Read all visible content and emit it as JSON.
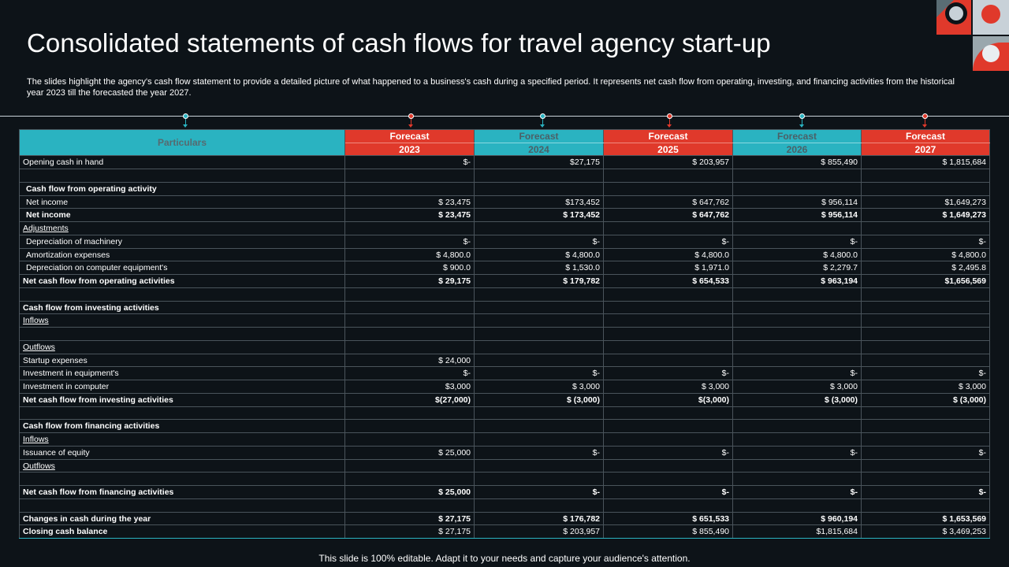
{
  "slide": {
    "title": "Consolidated statements of cash flows for travel agency start-up",
    "description": "The slides highlight the agency's cash flow statement to provide a detailed picture of what happened to a business's cash during a specified period. It represents net cash flow from operating, investing, and financing activities from the historical year 2023 till the forecasted the year 2027.",
    "footer": "This slide is 100% editable. Adapt it to your needs and capture your audience's attention."
  },
  "colors": {
    "teal": "#2ab3c1",
    "red": "#e0392b",
    "background": "#0d1318"
  },
  "table": {
    "particulars_header": "Particulars",
    "columns": [
      {
        "label": "Forecast",
        "year": "2023",
        "color": "red"
      },
      {
        "label": "Forecast",
        "year": "2024",
        "color": "teal"
      },
      {
        "label": "Forecast",
        "year": "2025",
        "color": "red"
      },
      {
        "label": "Forecast",
        "year": "2026",
        "color": "teal"
      },
      {
        "label": "Forecast",
        "year": "2027",
        "color": "red"
      }
    ],
    "rows": [
      {
        "label": "Opening cash in hand",
        "style": "plain",
        "values": [
          "$-",
          "$27,175",
          "$ 203,957",
          "$ 855,490",
          "$ 1,815,684"
        ]
      },
      {
        "label": "",
        "style": "plain",
        "values": [
          "",
          "",
          "",
          "",
          ""
        ]
      },
      {
        "label": "Cash flow from operating activity",
        "style": "bold-ind",
        "values": [
          "",
          "",
          "",
          "",
          ""
        ]
      },
      {
        "label": "Net income",
        "style": "ind",
        "values": [
          "$ 23,475",
          "$173,452",
          "$ 647,762",
          "$ 956,114",
          "$1,649,273"
        ]
      },
      {
        "label": "Net income",
        "style": "bold-ind",
        "values": [
          "$ 23,475",
          "$ 173,452",
          "$ 647,762",
          "$ 956,114",
          "$ 1,649,273"
        ]
      },
      {
        "label": "Adjustments",
        "style": "underline",
        "values": [
          "",
          "",
          "",
          "",
          ""
        ]
      },
      {
        "label": "Depreciation of machinery",
        "style": "ind",
        "values": [
          "$-",
          "$-",
          "$-",
          "$-",
          "$-"
        ]
      },
      {
        "label": "Amortization expenses",
        "style": "ind",
        "values": [
          "$ 4,800.0",
          "$ 4,800.0",
          "$ 4,800.0",
          "$ 4,800.0",
          "$ 4,800.0"
        ]
      },
      {
        "label": "Depreciation on computer equipment's",
        "style": "ind",
        "values": [
          "$ 900.0",
          "$ 1,530.0",
          "$ 1,971.0",
          "$ 2,279.7",
          "$ 2,495.8"
        ]
      },
      {
        "label": "Net cash flow from operating activities",
        "style": "bold",
        "values": [
          "$ 29,175",
          "$ 179,782",
          "$ 654,533",
          "$ 963,194",
          "$1,656,569"
        ]
      },
      {
        "label": "",
        "style": "plain",
        "values": [
          "",
          "",
          "",
          "",
          ""
        ]
      },
      {
        "label": "Cash flow from investing activities",
        "style": "bold",
        "values": [
          "",
          "",
          "",
          "",
          ""
        ]
      },
      {
        "label": "Inflows",
        "style": "underline",
        "values": [
          "",
          "",
          "",
          "",
          ""
        ]
      },
      {
        "label": "",
        "style": "plain",
        "values": [
          "",
          "",
          "",
          "",
          ""
        ]
      },
      {
        "label": "Outflows",
        "style": "underline",
        "values": [
          "",
          "",
          "",
          "",
          ""
        ]
      },
      {
        "label": "Startup expenses",
        "style": "plain",
        "values": [
          "$ 24,000",
          "",
          "",
          "",
          ""
        ]
      },
      {
        "label": "Investment in equipment's",
        "style": "plain",
        "values": [
          "$-",
          "$-",
          "$-",
          "$-",
          "$-"
        ]
      },
      {
        "label": "Investment in computer",
        "style": "plain",
        "values": [
          "$3,000",
          "$ 3,000",
          "$ 3,000",
          "$ 3,000",
          "$ 3,000"
        ]
      },
      {
        "label": "Net cash flow from investing activities",
        "style": "bold",
        "values": [
          "$(27,000)",
          "$ (3,000)",
          "$(3,000)",
          "$ (3,000)",
          "$ (3,000)"
        ]
      },
      {
        "label": "",
        "style": "plain",
        "values": [
          "",
          "",
          "",
          "",
          ""
        ]
      },
      {
        "label": "Cash flow from financing activities",
        "style": "bold",
        "values": [
          "",
          "",
          "",
          "",
          ""
        ]
      },
      {
        "label": "Inflows",
        "style": "underline",
        "values": [
          "",
          "",
          "",
          "",
          ""
        ]
      },
      {
        "label": "Issuance of equity",
        "style": "plain",
        "values": [
          "$ 25,000",
          "$-",
          "$-",
          "$-",
          "$-"
        ]
      },
      {
        "label": "Outflows",
        "style": "underline",
        "values": [
          "",
          "",
          "",
          "",
          ""
        ]
      },
      {
        "label": "",
        "style": "plain",
        "values": [
          "",
          "",
          "",
          "",
          ""
        ]
      },
      {
        "label": "Net cash flow from financing activities",
        "style": "bold",
        "values": [
          "$ 25,000",
          "$-",
          "$-",
          "$-",
          "$-"
        ]
      },
      {
        "label": "",
        "style": "plain",
        "values": [
          "",
          "",
          "",
          "",
          ""
        ]
      },
      {
        "label": "Changes in cash during the year",
        "style": "bold",
        "values": [
          "$ 27,175",
          "$ 176,782",
          "$ 651,533",
          "$ 960,194",
          "$ 1,653,569"
        ]
      },
      {
        "label": "Closing cash balance",
        "style": "bold-label",
        "values": [
          "$ 27,175",
          "$ 203,957",
          "$ 855,490",
          "$1,815,684",
          "$ 3,469,253"
        ]
      }
    ]
  }
}
